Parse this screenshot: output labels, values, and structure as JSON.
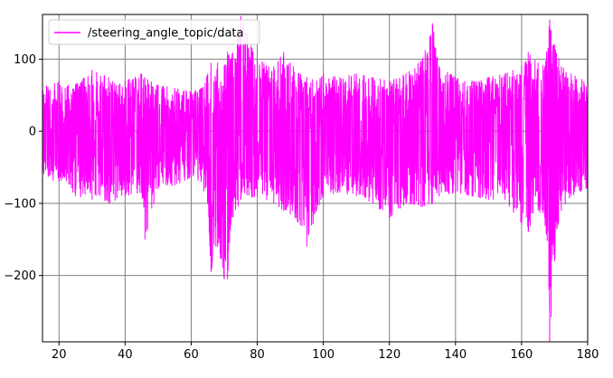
{
  "chart_data": {
    "type": "line",
    "title": "",
    "xlabel": "",
    "ylabel": "",
    "xlim": [
      15,
      180
    ],
    "ylim": [
      -292,
      162
    ],
    "x_ticks": [
      20,
      40,
      60,
      80,
      100,
      120,
      140,
      160,
      180
    ],
    "x_tick_labels": [
      "20",
      "40",
      "60",
      "80",
      "100",
      "120",
      "140",
      "160",
      "180"
    ],
    "y_ticks": [
      100,
      0,
      -100,
      -200
    ],
    "y_tick_labels": [
      "100",
      "0",
      "−100",
      "−200"
    ],
    "grid": true,
    "legend_position": "upper-left",
    "series": [
      {
        "name": "/steering_angle_topic/data",
        "color": "#ff00ff",
        "envelope": {
          "x": [
            15,
            20,
            25,
            30,
            35,
            40,
            45,
            46,
            50,
            55,
            60,
            63,
            65,
            66,
            68,
            70,
            71,
            72,
            75,
            80,
            85,
            88,
            90,
            93,
            95,
            98,
            100,
            105,
            110,
            115,
            120,
            125,
            130,
            133,
            135,
            140,
            145,
            150,
            155,
            160,
            162,
            165,
            167,
            168.5,
            170,
            172,
            175,
            180
          ],
          "upper": [
            60,
            70,
            65,
            85,
            75,
            70,
            80,
            75,
            65,
            60,
            55,
            60,
            80,
            95,
            95,
            90,
            110,
            100,
            160,
            100,
            90,
            110,
            95,
            80,
            75,
            70,
            80,
            75,
            80,
            75,
            70,
            80,
            100,
            150,
            90,
            75,
            70,
            75,
            80,
            90,
            110,
            95,
            90,
            155,
            120,
            90,
            80,
            70
          ],
          "lower": [
            -65,
            -70,
            -90,
            -95,
            -100,
            -90,
            -85,
            -150,
            -80,
            -75,
            -65,
            -70,
            -100,
            -195,
            -160,
            -205,
            -205,
            -130,
            -95,
            -90,
            -100,
            -110,
            -115,
            -130,
            -160,
            -110,
            -90,
            -85,
            -90,
            -100,
            -120,
            -100,
            -105,
            -100,
            -90,
            -85,
            -90,
            -95,
            -95,
            -130,
            -140,
            -110,
            -120,
            -292,
            -180,
            -110,
            -90,
            -80
          ]
        }
      }
    ]
  }
}
